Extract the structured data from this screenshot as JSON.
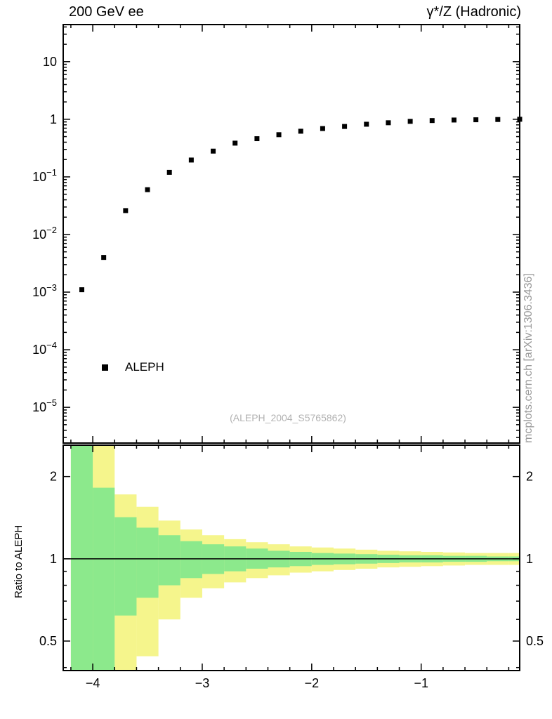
{
  "header": {
    "title_left": "200 GeV ee",
    "title_right": "γ*/Z (Hadronic)"
  },
  "captions": {
    "watermark": "(ALEPH_2004_S5765862)",
    "side": "mcplots.cern.ch [arXiv:1306.3436]"
  },
  "legend": {
    "items": [
      {
        "label": "ALEPH",
        "marker": "filled-square",
        "color": "#000000"
      }
    ]
  },
  "chart_data": {
    "type": "scatter",
    "title": "200 GeV ee — γ*/Z (Hadronic)",
    "xlabel": "",
    "ylabel": "",
    "xscale": "linear",
    "yscale": "log",
    "xlim": [
      -4.27,
      -0.1
    ],
    "ylim_main": [
      2.4e-06,
      44
    ],
    "x_ticks": [
      -4,
      -3,
      -2,
      -1
    ],
    "y_ticks_main": [
      10,
      1,
      0.1,
      0.01,
      0.001,
      0.0001,
      1e-05
    ],
    "x": [
      -4.1,
      -3.9,
      -3.7,
      -3.5,
      -3.3,
      -3.1,
      -2.9,
      -2.7,
      -2.5,
      -2.3,
      -2.1,
      -1.9,
      -1.7,
      -1.5,
      -1.3,
      -1.1,
      -0.9,
      -0.7,
      -0.5,
      -0.3,
      -0.1
    ],
    "series": [
      {
        "name": "ALEPH",
        "marker": "filled-square",
        "color": "#000000",
        "values": [
          0.0011,
          0.004,
          0.026,
          0.06,
          0.12,
          0.196,
          0.28,
          0.385,
          0.46,
          0.54,
          0.62,
          0.69,
          0.75,
          0.82,
          0.87,
          0.92,
          0.95,
          0.97,
          0.98,
          0.99,
          1.0
        ]
      }
    ],
    "ratio": {
      "ylabel": "Ratio to ALEPH",
      "yscale": "log",
      "ylim": [
        0.39,
        2.605
      ],
      "y_ticks": [
        2,
        1,
        0.5
      ],
      "reference_line": 1,
      "bin_width": 0.2,
      "band_colors": {
        "outer": "#f5f58c",
        "inner": "#8ce98c"
      },
      "bands": [
        {
          "x": -4.1,
          "outer": [
            0.3,
            3.0
          ],
          "inner": [
            0.3,
            3.0
          ]
        },
        {
          "x": -3.9,
          "outer": [
            0.3,
            3.0
          ],
          "inner": [
            0.3,
            1.82
          ]
        },
        {
          "x": -3.7,
          "outer": [
            0.3,
            1.72
          ],
          "inner": [
            0.62,
            1.42
          ]
        },
        {
          "x": -3.5,
          "outer": [
            0.44,
            1.55
          ],
          "inner": [
            0.72,
            1.3
          ]
        },
        {
          "x": -3.3,
          "outer": [
            0.6,
            1.38
          ],
          "inner": [
            0.8,
            1.22
          ]
        },
        {
          "x": -3.1,
          "outer": [
            0.72,
            1.28
          ],
          "inner": [
            0.85,
            1.16
          ]
        },
        {
          "x": -2.9,
          "outer": [
            0.78,
            1.22
          ],
          "inner": [
            0.88,
            1.13
          ]
        },
        {
          "x": -2.7,
          "outer": [
            0.82,
            1.18
          ],
          "inner": [
            0.9,
            1.11
          ]
        },
        {
          "x": -2.5,
          "outer": [
            0.85,
            1.15
          ],
          "inner": [
            0.92,
            1.09
          ]
        },
        {
          "x": -2.3,
          "outer": [
            0.87,
            1.13
          ],
          "inner": [
            0.93,
            1.07
          ]
        },
        {
          "x": -2.1,
          "outer": [
            0.89,
            1.11
          ],
          "inner": [
            0.94,
            1.06
          ]
        },
        {
          "x": -1.9,
          "outer": [
            0.9,
            1.1
          ],
          "inner": [
            0.95,
            1.05
          ]
        },
        {
          "x": -1.7,
          "outer": [
            0.91,
            1.09
          ],
          "inner": [
            0.955,
            1.045
          ]
        },
        {
          "x": -1.5,
          "outer": [
            0.92,
            1.08
          ],
          "inner": [
            0.96,
            1.04
          ]
        },
        {
          "x": -1.3,
          "outer": [
            0.93,
            1.07
          ],
          "inner": [
            0.965,
            1.035
          ]
        },
        {
          "x": -1.1,
          "outer": [
            0.935,
            1.065
          ],
          "inner": [
            0.97,
            1.03
          ]
        },
        {
          "x": -0.9,
          "outer": [
            0.94,
            1.06
          ],
          "inner": [
            0.97,
            1.03
          ]
        },
        {
          "x": -0.7,
          "outer": [
            0.945,
            1.055
          ],
          "inner": [
            0.975,
            1.025
          ]
        },
        {
          "x": -0.5,
          "outer": [
            0.95,
            1.05
          ],
          "inner": [
            0.975,
            1.025
          ]
        },
        {
          "x": -0.3,
          "outer": [
            0.95,
            1.05
          ],
          "inner": [
            0.98,
            1.02
          ]
        },
        {
          "x": -0.1,
          "outer": [
            0.95,
            1.05
          ],
          "inner": [
            0.98,
            1.02
          ]
        }
      ]
    }
  }
}
